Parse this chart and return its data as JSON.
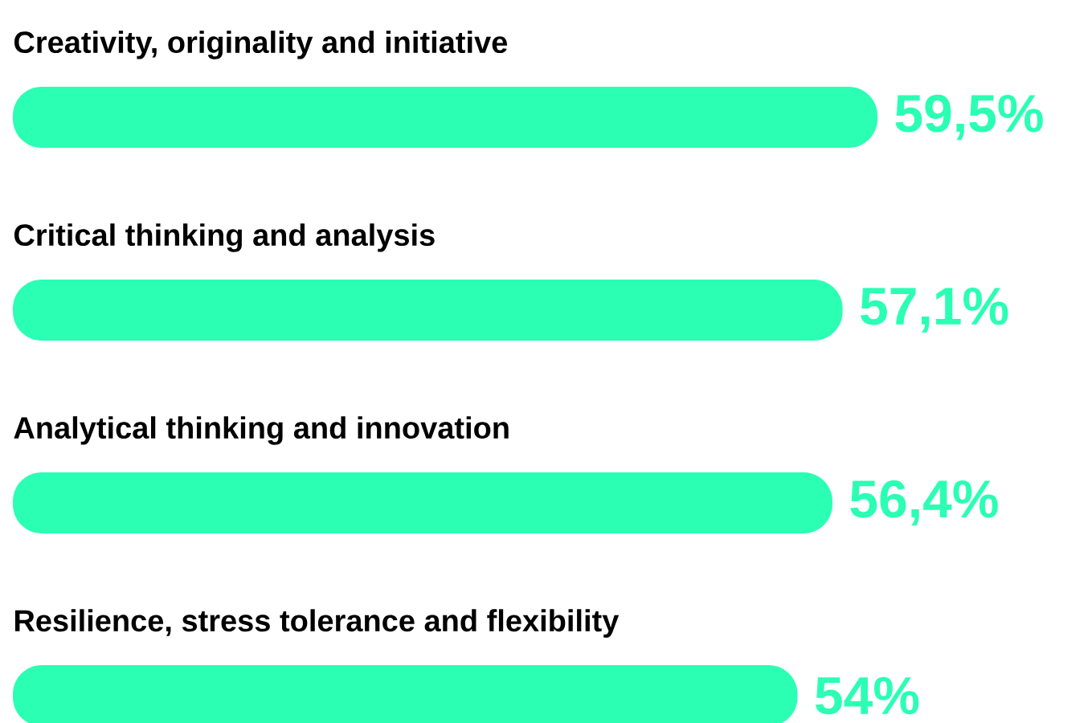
{
  "chart_data": {
    "type": "bar",
    "orientation": "horizontal",
    "categories": [
      "Creativity, originality and initiative",
      "Critical thinking and analysis",
      "Analytical thinking and innovation",
      "Resilience, stress tolerance and flexibility"
    ],
    "values": [
      59.5,
      57.1,
      56.4,
      54
    ],
    "value_labels": [
      "59,5%",
      "57,1%",
      "56,4%",
      "54%"
    ],
    "color": "#2affb4"
  }
}
